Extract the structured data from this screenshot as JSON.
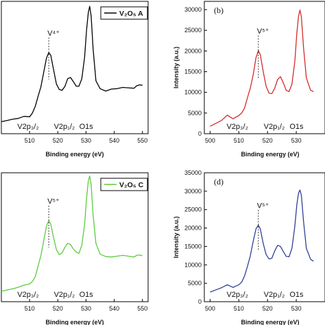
{
  "chart_data": [
    {
      "type": "line",
      "panel_label": "",
      "legend": {
        "text": "V₂O₅ A",
        "color": "#000000"
      },
      "xlabel": "Binding energy (eV)",
      "ylabel": "",
      "xlim": [
        500,
        552
      ],
      "ylim": [
        0,
        32000
      ],
      "xticks": [
        510,
        520,
        530,
        540,
        550
      ],
      "yticks": [],
      "peak_label": {
        "text": "V⁴⁺",
        "x": 516.8
      },
      "bottom_labels": [
        "V2p₃/₂",
        "V2p₁/₂",
        "O1s"
      ],
      "series": [
        {
          "color": "#000000",
          "x": [
            500,
            502,
            504,
            506,
            508,
            510,
            511,
            512,
            513,
            514,
            515,
            516,
            516.8,
            517.5,
            518.5,
            519.5,
            520.5,
            521.5,
            522.5,
            523.5,
            524.5,
            525.5,
            526.5,
            527.5,
            528.5,
            529.5,
            530.2,
            530.8,
            531.3,
            531.8,
            532.5,
            533.5,
            535,
            537,
            539,
            541,
            543,
            545,
            547,
            548,
            549,
            550
          ],
          "y": [
            2900,
            3200,
            3500,
            3700,
            4200,
            4100,
            5000,
            6600,
            9000,
            11300,
            14800,
            18300,
            19600,
            19000,
            15500,
            12000,
            10700,
            10500,
            11400,
            13300,
            13600,
            12600,
            11500,
            11500,
            13300,
            18500,
            25200,
            29300,
            30800,
            28500,
            20500,
            12800,
            10900,
            10300,
            10800,
            10900,
            11200,
            11100,
            11000,
            11600,
            11800,
            11700
          ]
        }
      ]
    },
    {
      "type": "line",
      "panel_label": "(b)",
      "legend": null,
      "xlabel": "Binding energy (eV)",
      "ylabel": "Intensity (a.u.)",
      "xlim": [
        498,
        540
      ],
      "ylim": [
        0,
        32000
      ],
      "xticks": [
        500,
        510,
        520,
        530
      ],
      "yticks": [
        0,
        5000,
        10000,
        15000,
        20000,
        25000,
        30000
      ],
      "peak_label": {
        "text": "V⁵⁺",
        "x": 516.8
      },
      "bottom_labels": [
        "V2p₃/₂",
        "V2p₁/₂",
        "O1s"
      ],
      "series": [
        {
          "color": "#d42a2a",
          "x": [
            500,
            502,
            504,
            506,
            508,
            510,
            511,
            512,
            513,
            514,
            515,
            516,
            516.8,
            517.5,
            518.5,
            519.5,
            520.5,
            521.5,
            522.5,
            523.5,
            524.5,
            525.5,
            526.5,
            527.5,
            528.5,
            529.5,
            530.2,
            530.8,
            531.3,
            531.8,
            532.5,
            533.5,
            535,
            536
          ],
          "y": [
            1800,
            2500,
            3200,
            4500,
            3600,
            4400,
            5000,
            6200,
            8700,
            11000,
            14200,
            18400,
            20100,
            19100,
            15000,
            11500,
            9800,
            9700,
            11000,
            13100,
            13800,
            12300,
            10500,
            10200,
            12000,
            17500,
            24300,
            28400,
            29900,
            28200,
            21000,
            13500,
            10500,
            10200
          ]
        }
      ]
    },
    {
      "type": "line",
      "panel_label": "",
      "legend": {
        "text": "V₂O₅ C",
        "color": "#5bcb3c"
      },
      "xlabel": "Binding energy (eV)",
      "ylabel": "",
      "xlim": [
        500,
        552
      ],
      "ylim": [
        0,
        32000
      ],
      "xticks": [
        510,
        520,
        530,
        540,
        550
      ],
      "yticks": [],
      "peak_label": {
        "text": "V⁵⁺",
        "x": 516.8
      },
      "bottom_labels": [
        "V2p₃/₂",
        "V2p₁/₂",
        "O1s"
      ],
      "series": [
        {
          "color": "#5bcb3c",
          "x": [
            500,
            502,
            504,
            506,
            508,
            510,
            511,
            512,
            513,
            514,
            515,
            516,
            516.8,
            517.5,
            518.5,
            519.5,
            520.5,
            521.5,
            522.5,
            523.5,
            524.5,
            525.5,
            526.5,
            527.5,
            528.5,
            529.5,
            530.2,
            530.8,
            531.3,
            531.8,
            532.5,
            533.5,
            535,
            537,
            539,
            541,
            543,
            545,
            547,
            548,
            549,
            550
          ],
          "y": [
            2600,
            2900,
            3200,
            3600,
            4100,
            4400,
            5000,
            6200,
            8800,
            11400,
            15100,
            18800,
            20100,
            19300,
            15900,
            12900,
            11700,
            12100,
            13500,
            14500,
            14200,
            13100,
            12300,
            12000,
            14000,
            19200,
            25800,
            30000,
            31200,
            29000,
            21500,
            14500,
            11800,
            11200,
            11100,
            11300,
            11500,
            11300,
            11100,
            11500,
            11600,
            11400
          ]
        }
      ]
    },
    {
      "type": "line",
      "panel_label": "(d)",
      "legend": null,
      "xlabel": "Binding energy (eV)",
      "ylabel": "Intensity (a.u.)",
      "xlim": [
        498,
        540
      ],
      "ylim": [
        0,
        35000
      ],
      "xticks": [
        500,
        510,
        520,
        530
      ],
      "yticks": [
        0,
        5000,
        10000,
        15000,
        20000,
        25000,
        30000,
        35000
      ],
      "peak_label": {
        "text": "V⁵⁺",
        "x": 516.8
      },
      "bottom_labels": [
        "V2p₃/₂",
        "V2p₁/₂",
        "O1s"
      ],
      "series": [
        {
          "color": "#2f3f96",
          "x": [
            500,
            502,
            504,
            506,
            508,
            510,
            511,
            512,
            513,
            514,
            515,
            516,
            516.8,
            517.5,
            518.5,
            519.5,
            520.5,
            521.5,
            522.5,
            523.5,
            524.5,
            525.5,
            526.5,
            527.5,
            528.5,
            529.5,
            530.2,
            530.8,
            531.3,
            531.8,
            532.5,
            533.5,
            535,
            536
          ],
          "y": [
            2600,
            3200,
            3800,
            4600,
            3900,
            4600,
            5300,
            7000,
            9600,
            12400,
            16300,
            19800,
            20800,
            19700,
            15800,
            12800,
            11600,
            11800,
            13800,
            15300,
            15000,
            13600,
            12300,
            12200,
            14500,
            20500,
            26300,
            29500,
            30300,
            28800,
            22000,
            14500,
            11500,
            11000
          ]
        }
      ]
    }
  ]
}
